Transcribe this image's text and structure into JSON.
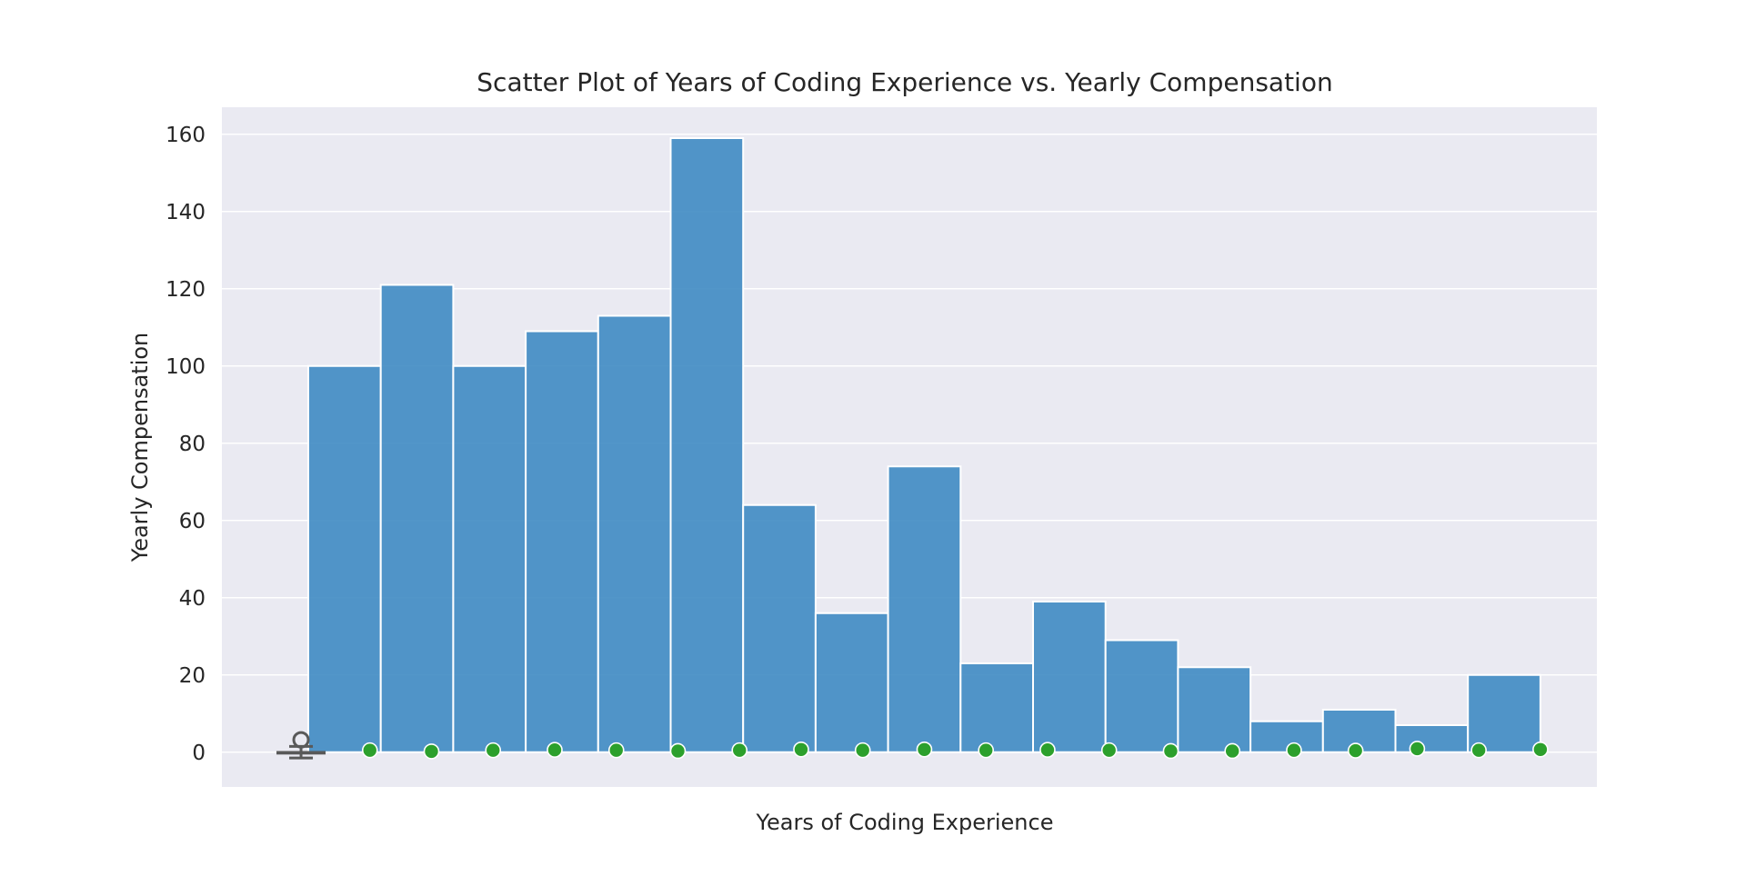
{
  "chart_data": {
    "type": "bar",
    "title": "Scatter Plot of Years of Coding Experience vs. Yearly Compensation",
    "xlabel": "Years of Coding Experience",
    "ylabel": "Yearly Compensation",
    "ylim": [
      -9,
      167
    ],
    "yticks": [
      0,
      20,
      40,
      60,
      80,
      100,
      120,
      140,
      160
    ],
    "ytick_labels": [
      "0",
      "20",
      "40",
      "60",
      "80",
      "100",
      "120",
      "140",
      "160"
    ],
    "grid": true,
    "x_tick_labels_visible": false,
    "bins": {
      "count": 17,
      "values": [
        100,
        121,
        100,
        109,
        113,
        159,
        64,
        36,
        74,
        23,
        39,
        29,
        22,
        8,
        11,
        7,
        20
      ]
    },
    "scatter": {
      "x_bin_index": [
        0.85,
        1.7,
        2.55,
        3.4,
        4.25,
        5.1,
        5.95,
        6.8,
        7.65,
        8.5,
        9.35,
        10.2,
        11.05,
        11.9,
        12.75,
        13.6,
        14.45,
        15.3,
        16.15,
        17.0
      ],
      "values": [
        0.5,
        0.2,
        0.5,
        0.6,
        0.5,
        0.3,
        0.5,
        0.7,
        0.5,
        0.7,
        0.5,
        0.6,
        0.5,
        0.3,
        0.3,
        0.5,
        0.4,
        0.9,
        0.5,
        0.7
      ]
    },
    "boxplot": {
      "x_bin_index": -0.1,
      "min": -1.5,
      "q1": -0.6,
      "median": 0,
      "q3": 0.3,
      "max": 1.5,
      "outlier": 3.2
    },
    "colors": {
      "background": "#eaeaf2",
      "grid": "#ffffff",
      "bar": "#3a88c2",
      "bar_edge": "#ffffff",
      "point": "#2ca02c",
      "point_edge": "#ffffff",
      "box": "#595959"
    }
  }
}
